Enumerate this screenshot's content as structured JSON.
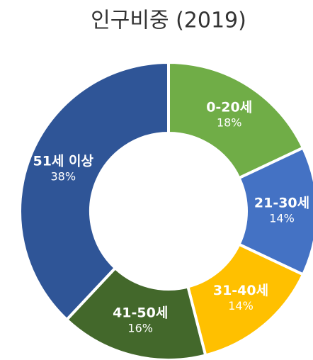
{
  "chart_data": {
    "type": "donut",
    "title": "인구비중 (2019)",
    "categories": [
      "0-20세",
      "21-30세",
      "31-40세",
      "41-50세",
      "51세 이상"
    ],
    "values": [
      18,
      14,
      14,
      16,
      38
    ],
    "value_labels": [
      "18%",
      "14%",
      "14%",
      "16%",
      "38%"
    ],
    "colors": [
      "#70ad47",
      "#4472c4",
      "#ffc000",
      "#43682b",
      "#2f5597"
    ]
  }
}
